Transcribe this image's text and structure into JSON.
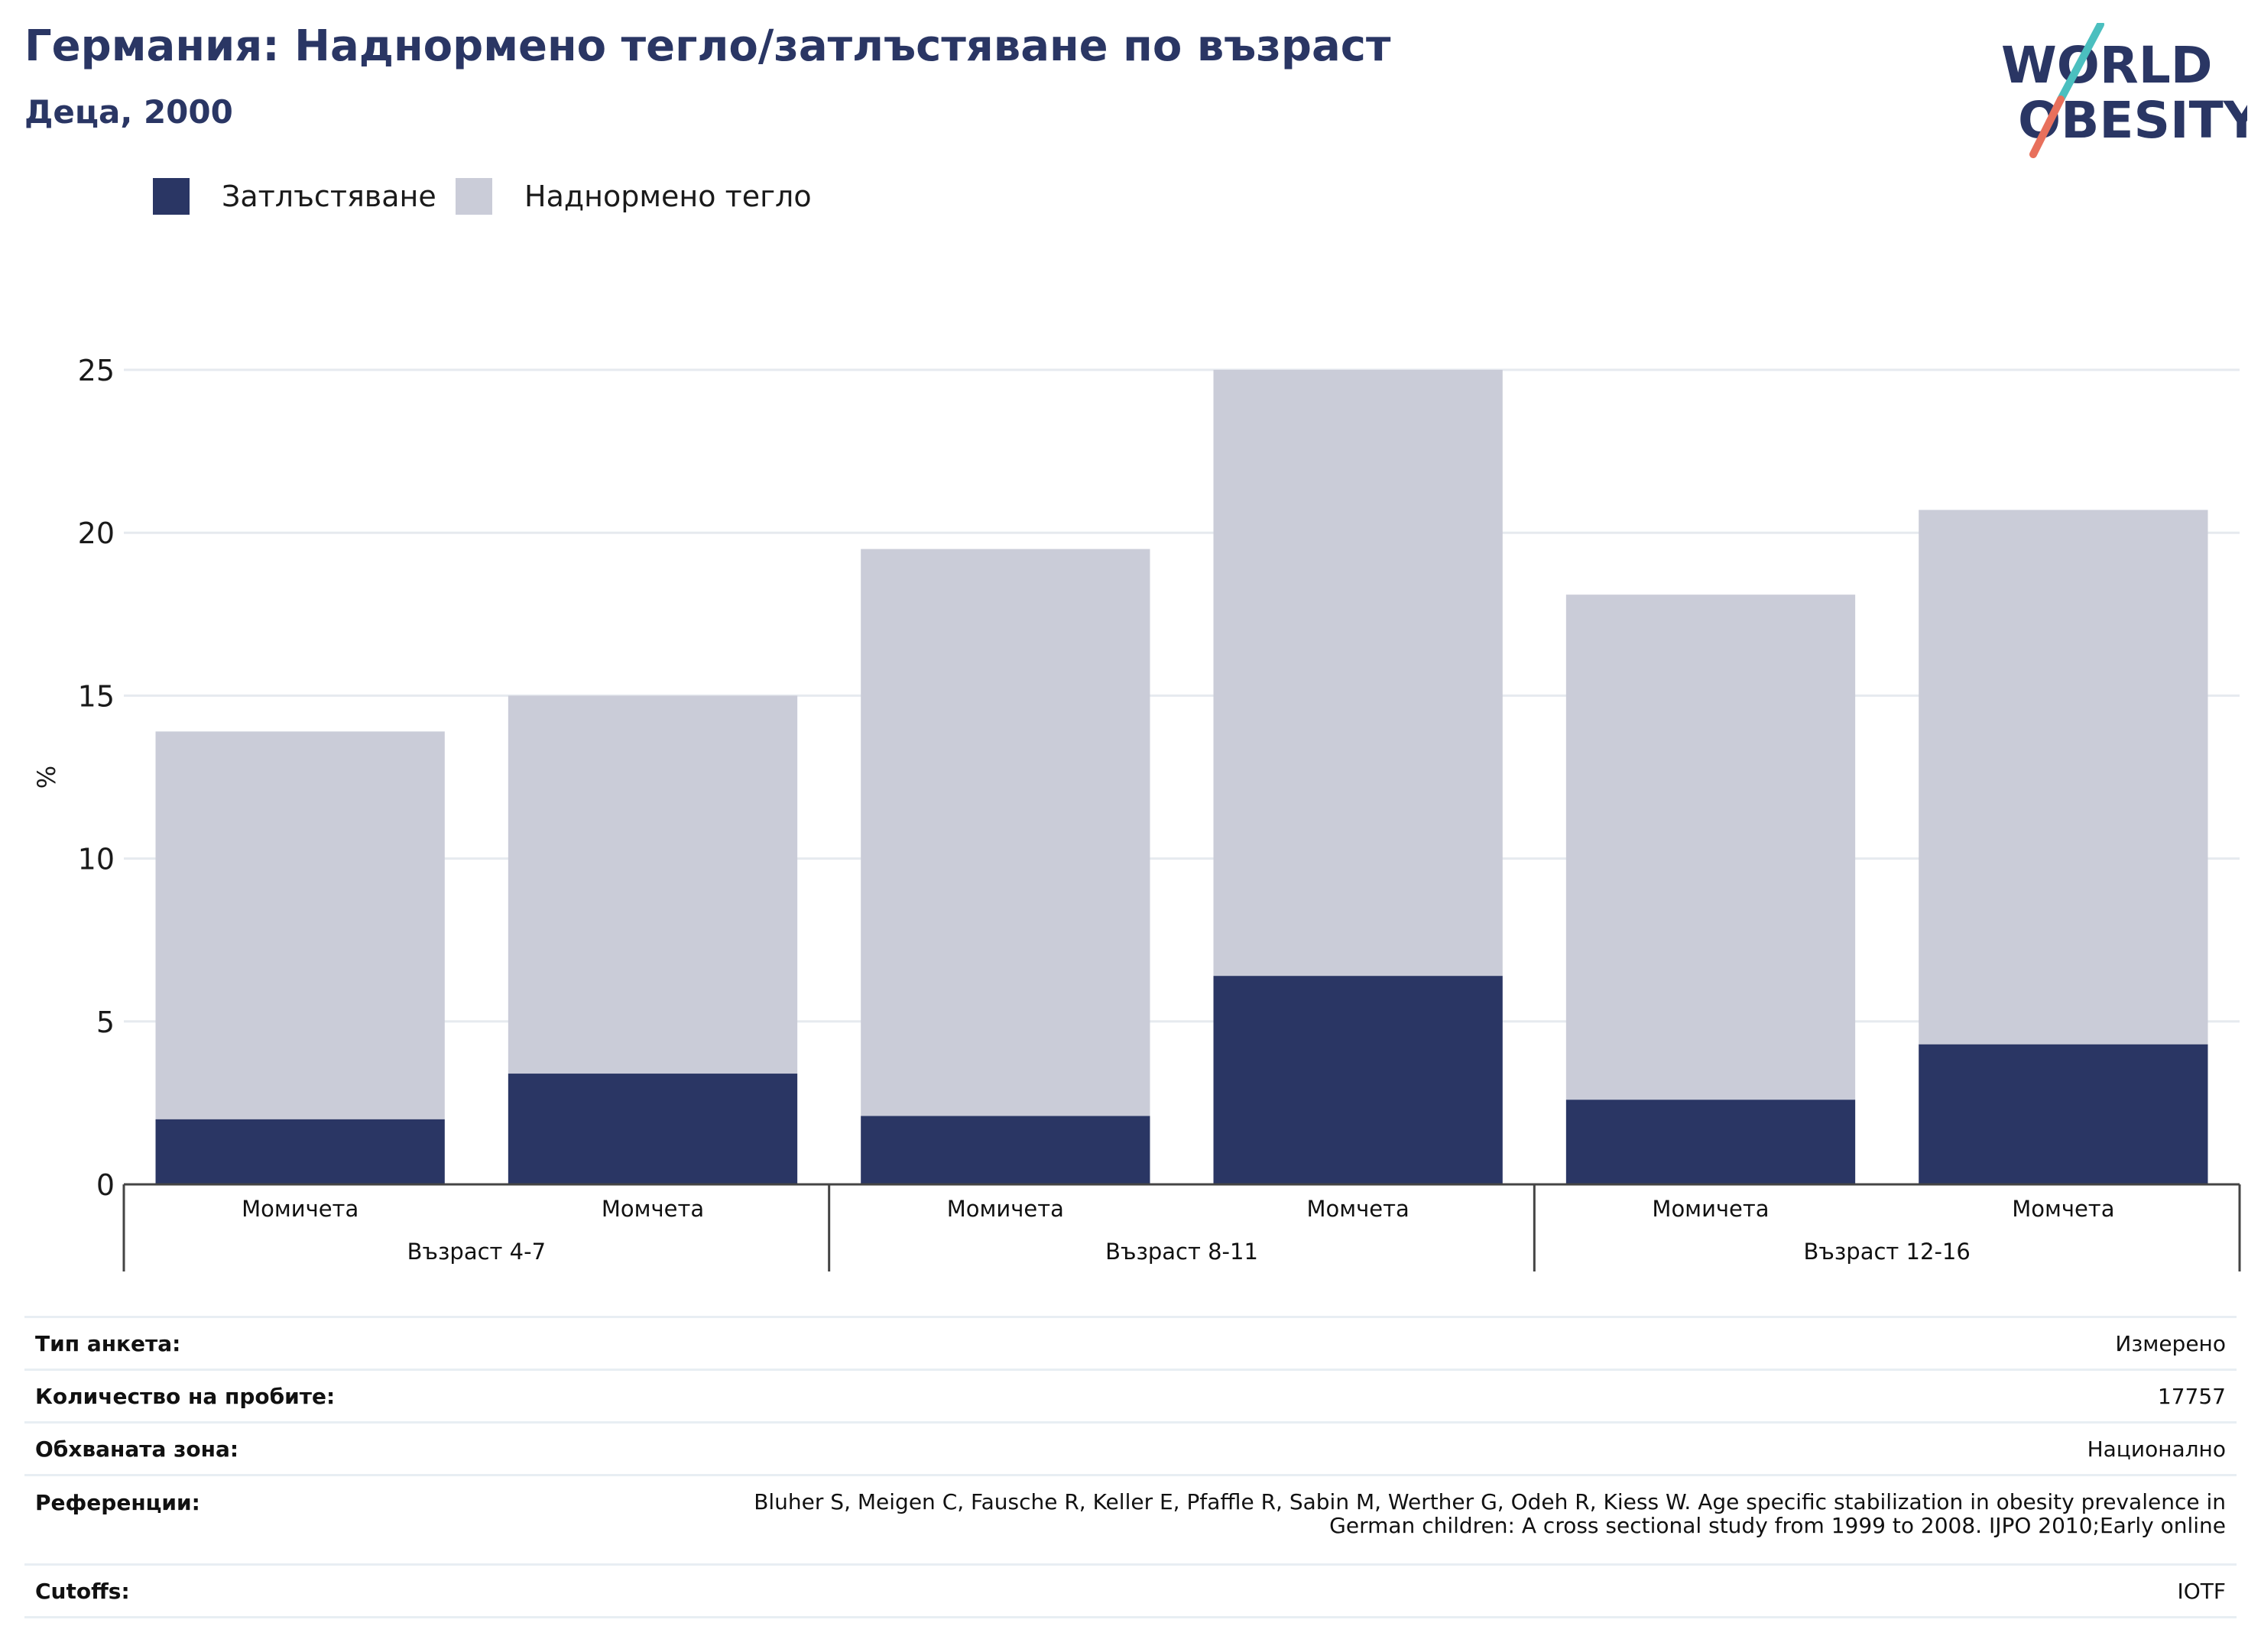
{
  "header": {
    "title": "Германия: Наднормено тегло/затлъстяване по възраст",
    "subtitle": "Деца, 2000"
  },
  "logo": {
    "line1": "WORLD",
    "line2": "OBESITY",
    "colors": {
      "text": "#2a3664",
      "slash_top": "#4bbfbf",
      "slash_bottom": "#e8705c"
    }
  },
  "chart_data": {
    "type": "bar",
    "stacked": true,
    "ylabel": "%",
    "ylim": [
      0,
      25
    ],
    "yticks": [
      0,
      5,
      10,
      15,
      20,
      25
    ],
    "grid": true,
    "legend_position": "top-left",
    "groups": [
      {
        "label": "Възраст 4-7",
        "categories": [
          "Момичета",
          "Момчета"
        ]
      },
      {
        "label": "Възраст 8-11",
        "categories": [
          "Момичета",
          "Момчета"
        ]
      },
      {
        "label": "Възраст 12-16",
        "categories": [
          "Момичета",
          "Момчета"
        ]
      }
    ],
    "categories": [
      "Момичета",
      "Момчета",
      "Момичета",
      "Момчета",
      "Момичета",
      "Момчета"
    ],
    "series": [
      {
        "name": "Затлъстяване",
        "color": "#2a3664",
        "values": [
          2.0,
          3.4,
          2.1,
          6.4,
          2.6,
          4.3
        ]
      },
      {
        "name": "Наднормено тегло",
        "color": "#caccd8",
        "values": [
          11.9,
          11.6,
          17.4,
          18.6,
          15.5,
          16.4
        ]
      }
    ]
  },
  "info": {
    "rows": [
      {
        "key": "Тип анкета:",
        "value": "Измерено"
      },
      {
        "key": "Количество на пробите:",
        "value": "17757"
      },
      {
        "key": "Обхваната зона:",
        "value": "Национално"
      },
      {
        "key": "Референции:",
        "value_lines": [
          "Bluher S, Meigen C, Fausche R, Keller E, Pfaffle R, Sabin M, Werther G, Odeh R, Kiess W. Age specific stabilization in obesity prevalence in",
          "German children: A cross sectional study from 1999 to 2008. IJPO 2010;Early online"
        ]
      },
      {
        "key": "Cutoffs:",
        "value": "IOTF"
      }
    ]
  }
}
